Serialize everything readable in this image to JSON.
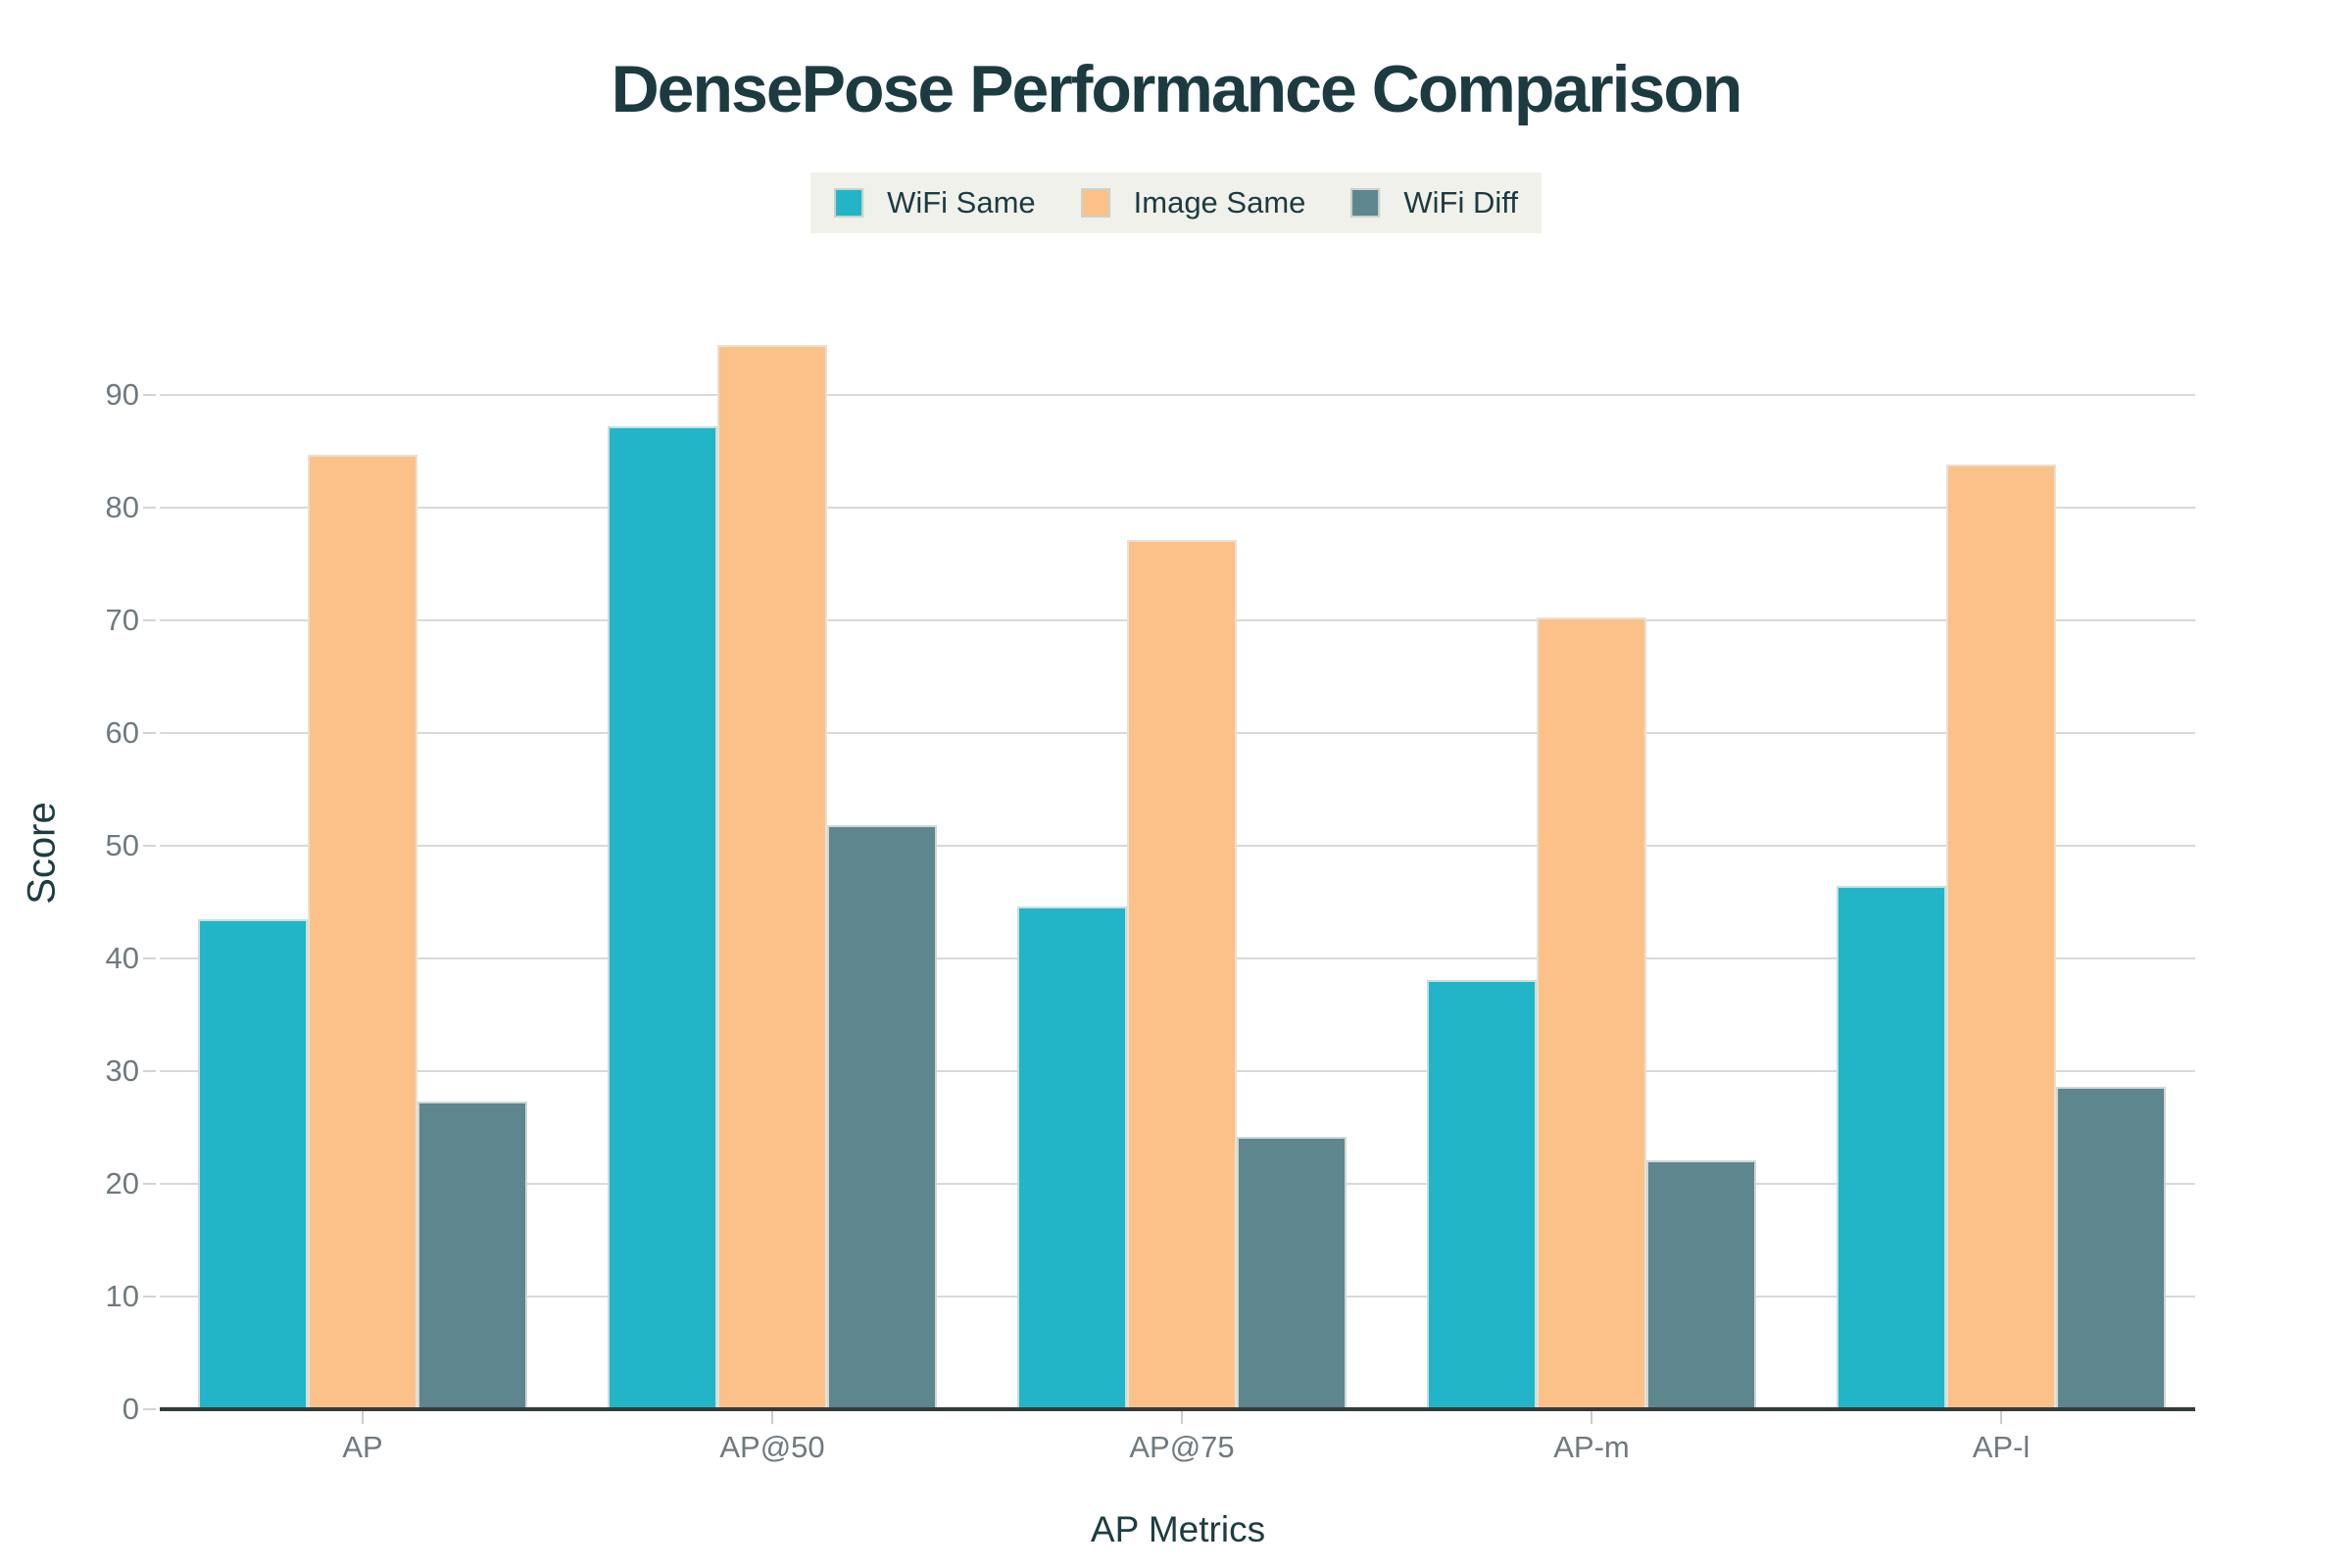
{
  "chart_data": {
    "type": "bar",
    "title": "DensePose Performance Comparison",
    "xlabel": "AP Metrics",
    "ylabel": "Score",
    "categories": [
      "AP",
      "AP@50",
      "AP@75",
      "AP-m",
      "AP-l"
    ],
    "series": [
      {
        "name": "WiFi Same",
        "color": "#22b5c7",
        "values": [
          43.5,
          87.2,
          44.6,
          38.1,
          46.4
        ]
      },
      {
        "name": "Image Same",
        "color": "#fbc189",
        "values": [
          84.7,
          94.4,
          77.1,
          70.3,
          83.8
        ]
      },
      {
        "name": "WiFi Diff",
        "color": "#5d868f",
        "values": [
          27.3,
          51.8,
          24.2,
          22.1,
          28.6
        ]
      }
    ],
    "ylim": [
      0,
      100
    ],
    "yticks": [
      0,
      10,
      20,
      30,
      40,
      50,
      60,
      70,
      80,
      90
    ],
    "grid": true,
    "legend_position": "top-center"
  },
  "palette": {
    "title_text": "#1c3b41",
    "axis_title_text": "#1e3d42",
    "tick_text": "#6f7a7f",
    "gridline": "#d9dad8",
    "baseline": "#343b3d",
    "legend_background": "#f0f1eb",
    "figure_background": "#ffffff"
  }
}
